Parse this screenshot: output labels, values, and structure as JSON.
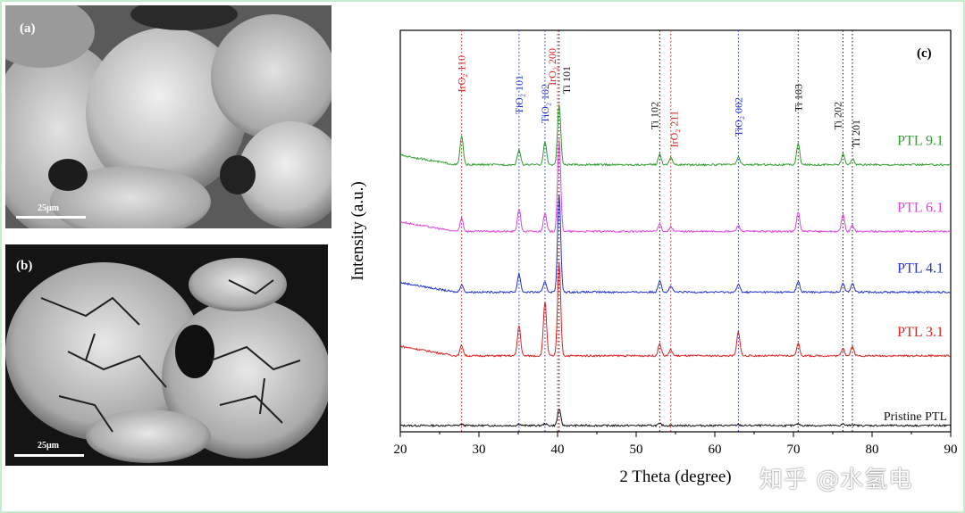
{
  "panel_a": {
    "label": "(a)",
    "scale": "25μm"
  },
  "panel_b": {
    "label": "(b)",
    "scale": "25μm"
  },
  "watermark": "知乎 @水氢电",
  "chart_data": {
    "type": "line",
    "panel_label": "(c)",
    "xlabel": "2 Theta (degree)",
    "ylabel": "Intensity (a.u.)",
    "xlim": [
      20,
      90
    ],
    "xticks": [
      20,
      30,
      40,
      50,
      60,
      70,
      80,
      90
    ],
    "colors": {
      "IrO2": "#cc2222",
      "TiO2": "#2233cc",
      "Ti": "#111111"
    },
    "reference_lines": [
      {
        "x": 27.8,
        "phase": "IrO2",
        "text": "IrO₂ 110"
      },
      {
        "x": 35.1,
        "phase": "TiO2",
        "text": "TiO₂ 101"
      },
      {
        "x": 38.4,
        "phase": "TiO2",
        "text": "TiO₂ 102"
      },
      {
        "x": 40.0,
        "phase": "IrO2",
        "text": "IrO₂ 200"
      },
      {
        "x": 40.2,
        "phase": "Ti",
        "text": "Ti 101"
      },
      {
        "x": 53.0,
        "phase": "Ti",
        "text": "Ti 102"
      },
      {
        "x": 54.4,
        "phase": "IrO2",
        "text": "IrO₂ 211"
      },
      {
        "x": 63.0,
        "phase": "TiO2",
        "text": "TiO₂ 002"
      },
      {
        "x": 70.6,
        "phase": "Ti",
        "text": "Ti 103"
      },
      {
        "x": 76.3,
        "phase": "Ti",
        "text": "Ti 202"
      },
      {
        "x": 77.5,
        "phase": "Ti",
        "text": "Ti 201"
      }
    ],
    "series": [
      {
        "name": "Pristine PTL",
        "color": "#111111",
        "baseline": 0,
        "peaks": [
          [
            27.8,
            0.04
          ],
          [
            35.1,
            0.05
          ],
          [
            38.4,
            0.06
          ],
          [
            40.2,
            0.55
          ],
          [
            53.0,
            0.06
          ],
          [
            63.0,
            0.03
          ],
          [
            70.6,
            0.06
          ],
          [
            76.3,
            0.05
          ],
          [
            77.5,
            0.04
          ]
        ]
      },
      {
        "name": "PTL 3.1",
        "color": "#dd2222",
        "baseline": 2.3,
        "peaks": [
          [
            27.8,
            0.35
          ],
          [
            35.1,
            1.0
          ],
          [
            38.4,
            1.8
          ],
          [
            40.2,
            3.1
          ],
          [
            53.0,
            0.4
          ],
          [
            54.4,
            0.2
          ],
          [
            63.0,
            0.8
          ],
          [
            70.6,
            0.4
          ],
          [
            76.3,
            0.25
          ],
          [
            77.5,
            0.3
          ]
        ]
      },
      {
        "name": "PTL 4.1",
        "color": "#2233cc",
        "baseline": 4.4,
        "peaks": [
          [
            27.8,
            0.25
          ],
          [
            35.1,
            0.6
          ],
          [
            38.4,
            0.35
          ],
          [
            40.2,
            3.2
          ],
          [
            53.0,
            0.4
          ],
          [
            54.4,
            0.2
          ],
          [
            63.0,
            0.25
          ],
          [
            70.6,
            0.35
          ],
          [
            76.3,
            0.3
          ],
          [
            77.5,
            0.3
          ]
        ]
      },
      {
        "name": "PTL 6.1",
        "color": "#dd44dd",
        "baseline": 6.4,
        "peaks": [
          [
            27.8,
            0.45
          ],
          [
            35.1,
            0.75
          ],
          [
            38.4,
            0.6
          ],
          [
            40.2,
            3.0
          ],
          [
            53.0,
            0.25
          ],
          [
            54.4,
            0.15
          ],
          [
            63.0,
            0.2
          ],
          [
            70.6,
            0.65
          ],
          [
            76.3,
            0.55
          ],
          [
            77.5,
            0.2
          ]
        ]
      },
      {
        "name": "PTL 9.1",
        "color": "#2e9e2e",
        "baseline": 8.6,
        "peaks": [
          [
            27.8,
            0.95
          ],
          [
            35.1,
            0.5
          ],
          [
            38.4,
            0.75
          ],
          [
            40.2,
            2.0
          ],
          [
            53.0,
            0.35
          ],
          [
            54.4,
            0.25
          ],
          [
            63.0,
            0.25
          ],
          [
            70.6,
            0.7
          ],
          [
            76.3,
            0.35
          ],
          [
            77.5,
            0.2
          ]
        ]
      }
    ]
  }
}
